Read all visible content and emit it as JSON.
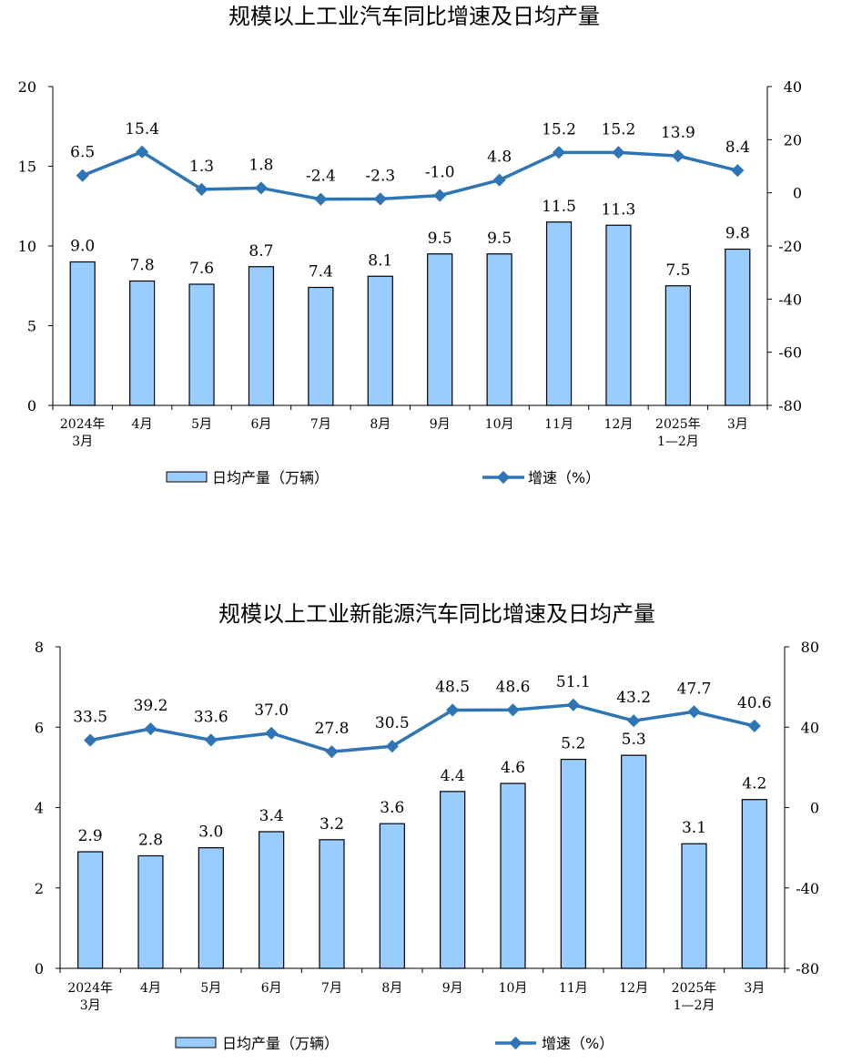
{
  "colors": {
    "bar_fill": "#99CCFF",
    "bar_stroke": "#000000",
    "line": "#2E75B6",
    "axis": "#000000"
  },
  "chart_data": [
    {
      "type": "bar",
      "title": "规模以上工业汽车同比增速及日均产量",
      "categories": [
        "2024年\n3月",
        "4月",
        "5月",
        "6月",
        "7月",
        "8月",
        "9月",
        "10月",
        "11月",
        "12月",
        "2025年\n1—2月",
        "3月"
      ],
      "series": [
        {
          "name": "日均产量（万辆）",
          "type": "bar",
          "axis": "left",
          "values": [
            9.0,
            7.8,
            7.6,
            8.7,
            7.4,
            8.1,
            9.5,
            9.5,
            11.5,
            11.3,
            7.5,
            9.8
          ],
          "labels": [
            "9.0",
            "7.8",
            "7.6",
            "8.7",
            "7.4",
            "8.1",
            "9.5",
            "9.5",
            "11.5",
            "11.3",
            "7.5",
            "9.8"
          ]
        },
        {
          "name": "增速（%）",
          "type": "line",
          "axis": "right",
          "values": [
            6.5,
            15.4,
            1.3,
            1.8,
            -2.4,
            -2.3,
            -1.0,
            4.8,
            15.2,
            15.2,
            13.9,
            8.4
          ],
          "labels": [
            "6.5",
            "15.4",
            "1.3",
            "1.8",
            "-2.4",
            "-2.3",
            "-1.0",
            "4.8",
            "15.2",
            "15.2",
            "13.9",
            "8.4"
          ]
        }
      ],
      "y_left": {
        "min": 0,
        "max": 20,
        "ticks": [
          "0",
          "5",
          "10",
          "15",
          "20"
        ]
      },
      "y_right": {
        "min": -80,
        "max": 40,
        "ticks": [
          "-80",
          "-60",
          "-40",
          "-20",
          "0",
          "20",
          "40"
        ]
      },
      "grid": false,
      "legend_position": "bottom"
    },
    {
      "type": "bar",
      "title": "规模以上工业新能源汽车同比增速及日均产量",
      "categories": [
        "2024年\n3月",
        "4月",
        "5月",
        "6月",
        "7月",
        "8月",
        "9月",
        "10月",
        "11月",
        "12月",
        "2025年\n1—2月",
        "3月"
      ],
      "series": [
        {
          "name": "日均产量（万辆）",
          "type": "bar",
          "axis": "left",
          "values": [
            2.9,
            2.8,
            3.0,
            3.4,
            3.2,
            3.6,
            4.4,
            4.6,
            5.2,
            5.3,
            3.1,
            4.2
          ],
          "labels": [
            "2.9",
            "2.8",
            "3.0",
            "3.4",
            "3.2",
            "3.6",
            "4.4",
            "4.6",
            "5.2",
            "5.3",
            "3.1",
            "4.2"
          ]
        },
        {
          "name": "增速（%）",
          "type": "line",
          "axis": "right",
          "values": [
            33.5,
            39.2,
            33.6,
            37.0,
            27.8,
            30.5,
            48.5,
            48.6,
            51.1,
            43.2,
            47.7,
            40.6
          ],
          "labels": [
            "33.5",
            "39.2",
            "33.6",
            "37.0",
            "27.8",
            "30.5",
            "48.5",
            "48.6",
            "51.1",
            "43.2",
            "47.7",
            "40.6"
          ]
        }
      ],
      "y_left": {
        "min": 0,
        "max": 8,
        "ticks": [
          "0",
          "2",
          "4",
          "6",
          "8"
        ]
      },
      "y_right": {
        "min": -80,
        "max": 80,
        "ticks": [
          "-80",
          "-40",
          "0",
          "40",
          "80"
        ]
      },
      "grid": false,
      "legend_position": "bottom"
    }
  ]
}
